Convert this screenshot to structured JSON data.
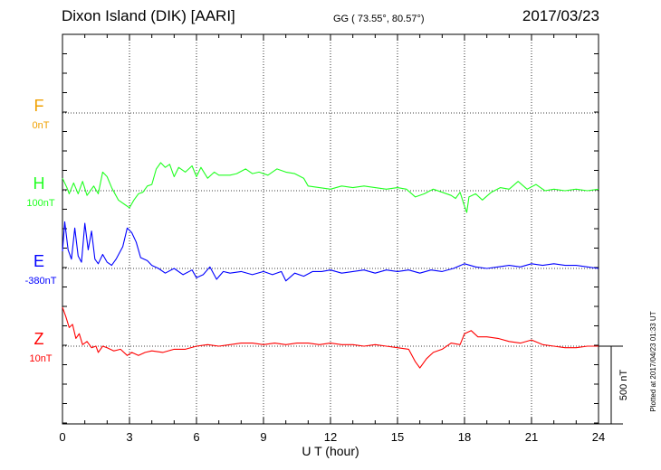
{
  "header": {
    "station": "Dixon Island (DIK)  [AARI]",
    "coords": "GG ( 73.55°,  80.57°)",
    "date": "2017/03/23"
  },
  "side_note": "Plotted at 2017/04/23 01:33 UT",
  "scale_label": "500 nT",
  "chart_data": {
    "type": "line",
    "xlabel": "U T (hour)",
    "xlim": [
      0,
      24
    ],
    "x_ticks": [
      0,
      3,
      6,
      9,
      12,
      15,
      18,
      21,
      24
    ],
    "x_tick_labels": [
      "0",
      "3",
      "6",
      "9",
      "12",
      "15",
      "18",
      "21",
      "24"
    ],
    "grid": true,
    "scale_bar_nT": 500,
    "series": [
      {
        "name": "F",
        "label": "F",
        "baseline": "0nT",
        "color": "#f0a000",
        "baseline_nT": 0,
        "points": []
      },
      {
        "name": "H",
        "label": "H",
        "baseline": "100nT",
        "color": "#20ff20",
        "baseline_nT": 100,
        "points": [
          [
            0,
            80
          ],
          [
            0.2,
            20
          ],
          [
            0.3,
            -20
          ],
          [
            0.5,
            50
          ],
          [
            0.7,
            -20
          ],
          [
            0.9,
            60
          ],
          [
            1.1,
            -30
          ],
          [
            1.4,
            30
          ],
          [
            1.6,
            -20
          ],
          [
            1.8,
            120
          ],
          [
            2.0,
            90
          ],
          [
            2.2,
            20
          ],
          [
            2.5,
            -60
          ],
          [
            2.8,
            -90
          ],
          [
            3.0,
            -110
          ],
          [
            3.2,
            -60
          ],
          [
            3.4,
            -20
          ],
          [
            3.6,
            -10
          ],
          [
            3.8,
            30
          ],
          [
            4.0,
            40
          ],
          [
            4.2,
            140
          ],
          [
            4.4,
            180
          ],
          [
            4.6,
            150
          ],
          [
            4.8,
            170
          ],
          [
            5.0,
            90
          ],
          [
            5.2,
            150
          ],
          [
            5.5,
            120
          ],
          [
            5.8,
            160
          ],
          [
            6.0,
            90
          ],
          [
            6.2,
            150
          ],
          [
            6.5,
            80
          ],
          [
            6.8,
            120
          ],
          [
            7.0,
            100
          ],
          [
            7.5,
            100
          ],
          [
            7.8,
            110
          ],
          [
            8.2,
            140
          ],
          [
            8.5,
            110
          ],
          [
            8.8,
            120
          ],
          [
            9.2,
            100
          ],
          [
            9.6,
            140
          ],
          [
            10.0,
            120
          ],
          [
            10.4,
            110
          ],
          [
            10.8,
            80
          ],
          [
            11.0,
            30
          ],
          [
            11.5,
            20
          ],
          [
            12.0,
            10
          ],
          [
            12.5,
            30
          ],
          [
            13.0,
            20
          ],
          [
            13.5,
            30
          ],
          [
            14.0,
            20
          ],
          [
            14.5,
            10
          ],
          [
            15.0,
            20
          ],
          [
            15.4,
            10
          ],
          [
            15.8,
            -40
          ],
          [
            16.2,
            -20
          ],
          [
            16.6,
            10
          ],
          [
            17.0,
            -10
          ],
          [
            17.4,
            -30
          ],
          [
            17.6,
            -50
          ],
          [
            17.8,
            -10
          ],
          [
            18.0,
            -100
          ],
          [
            18.1,
            -140
          ],
          [
            18.2,
            -40
          ],
          [
            18.5,
            -20
          ],
          [
            18.8,
            -60
          ],
          [
            19.2,
            -10
          ],
          [
            19.6,
            20
          ],
          [
            20.0,
            10
          ],
          [
            20.4,
            60
          ],
          [
            20.8,
            10
          ],
          [
            21.2,
            40
          ],
          [
            21.6,
            0
          ],
          [
            22.0,
            10
          ],
          [
            22.5,
            0
          ],
          [
            23.0,
            10
          ],
          [
            23.5,
            0
          ],
          [
            24.0,
            10
          ]
        ]
      },
      {
        "name": "E",
        "label": "E",
        "baseline": "-380nT",
        "color": "#0000ff",
        "baseline_nT": -380,
        "points": [
          [
            0,
            110
          ],
          [
            0.1,
            300
          ],
          [
            0.25,
            120
          ],
          [
            0.4,
            60
          ],
          [
            0.55,
            260
          ],
          [
            0.7,
            80
          ],
          [
            0.85,
            40
          ],
          [
            1.0,
            290
          ],
          [
            1.15,
            120
          ],
          [
            1.3,
            240
          ],
          [
            1.45,
            60
          ],
          [
            1.6,
            30
          ],
          [
            1.8,
            90
          ],
          [
            2.0,
            40
          ],
          [
            2.2,
            20
          ],
          [
            2.4,
            60
          ],
          [
            2.7,
            140
          ],
          [
            2.9,
            260
          ],
          [
            3.1,
            230
          ],
          [
            3.3,
            170
          ],
          [
            3.5,
            70
          ],
          [
            3.8,
            50
          ],
          [
            4.0,
            20
          ],
          [
            4.3,
            0
          ],
          [
            4.6,
            -30
          ],
          [
            5.0,
            0
          ],
          [
            5.4,
            -40
          ],
          [
            5.8,
            -10
          ],
          [
            6.0,
            -60
          ],
          [
            6.3,
            -40
          ],
          [
            6.6,
            10
          ],
          [
            6.9,
            -70
          ],
          [
            7.2,
            -20
          ],
          [
            7.5,
            -30
          ],
          [
            8.0,
            -20
          ],
          [
            8.5,
            -40
          ],
          [
            9.0,
            -20
          ],
          [
            9.4,
            -40
          ],
          [
            9.8,
            -20
          ],
          [
            10.0,
            -80
          ],
          [
            10.4,
            -30
          ],
          [
            10.8,
            -50
          ],
          [
            11.2,
            -20
          ],
          [
            11.6,
            -20
          ],
          [
            12.0,
            -10
          ],
          [
            12.5,
            -30
          ],
          [
            13.0,
            -20
          ],
          [
            13.5,
            -10
          ],
          [
            14.0,
            -30
          ],
          [
            14.5,
            -10
          ],
          [
            15.0,
            -20
          ],
          [
            15.5,
            -10
          ],
          [
            16.0,
            -30
          ],
          [
            16.5,
            -10
          ],
          [
            17.0,
            -20
          ],
          [
            17.5,
            0
          ],
          [
            18.0,
            30
          ],
          [
            18.5,
            10
          ],
          [
            19.0,
            0
          ],
          [
            19.5,
            10
          ],
          [
            20.0,
            20
          ],
          [
            20.5,
            10
          ],
          [
            21.0,
            30
          ],
          [
            21.5,
            20
          ],
          [
            22.0,
            30
          ],
          [
            22.5,
            20
          ],
          [
            23.0,
            20
          ],
          [
            23.5,
            10
          ],
          [
            24.0,
            0
          ]
        ]
      },
      {
        "name": "Z",
        "label": "Z",
        "baseline": "10nT",
        "color": "#ff0000",
        "baseline_nT": 10,
        "points": [
          [
            0,
            250
          ],
          [
            0.15,
            190
          ],
          [
            0.3,
            120
          ],
          [
            0.45,
            140
          ],
          [
            0.6,
            50
          ],
          [
            0.75,
            80
          ],
          [
            0.9,
            10
          ],
          [
            1.1,
            30
          ],
          [
            1.3,
            -10
          ],
          [
            1.5,
            0
          ],
          [
            1.6,
            -40
          ],
          [
            1.8,
            0
          ],
          [
            2.0,
            -10
          ],
          [
            2.3,
            -30
          ],
          [
            2.6,
            -20
          ],
          [
            2.9,
            -60
          ],
          [
            3.1,
            -40
          ],
          [
            3.4,
            -60
          ],
          [
            3.7,
            -40
          ],
          [
            4.0,
            -30
          ],
          [
            4.5,
            -40
          ],
          [
            5.0,
            -20
          ],
          [
            5.5,
            -20
          ],
          [
            6.0,
            0
          ],
          [
            6.5,
            10
          ],
          [
            7.0,
            0
          ],
          [
            7.5,
            10
          ],
          [
            8.0,
            20
          ],
          [
            8.5,
            20
          ],
          [
            9.0,
            10
          ],
          [
            9.5,
            20
          ],
          [
            10.0,
            10
          ],
          [
            10.5,
            20
          ],
          [
            11.0,
            20
          ],
          [
            11.5,
            10
          ],
          [
            12.0,
            20
          ],
          [
            12.5,
            10
          ],
          [
            13.0,
            10
          ],
          [
            13.5,
            0
          ],
          [
            14.0,
            10
          ],
          [
            14.5,
            0
          ],
          [
            15.0,
            -10
          ],
          [
            15.5,
            -20
          ],
          [
            15.8,
            -100
          ],
          [
            16.0,
            -140
          ],
          [
            16.3,
            -80
          ],
          [
            16.6,
            -40
          ],
          [
            17.0,
            -20
          ],
          [
            17.4,
            20
          ],
          [
            17.8,
            10
          ],
          [
            18.0,
            80
          ],
          [
            18.3,
            100
          ],
          [
            18.6,
            60
          ],
          [
            19.0,
            60
          ],
          [
            19.5,
            50
          ],
          [
            20.0,
            30
          ],
          [
            20.5,
            20
          ],
          [
            21.0,
            40
          ],
          [
            21.5,
            10
          ],
          [
            22.0,
            0
          ],
          [
            22.5,
            -10
          ],
          [
            23.0,
            -10
          ],
          [
            23.5,
            0
          ],
          [
            24.0,
            0
          ]
        ]
      }
    ]
  }
}
